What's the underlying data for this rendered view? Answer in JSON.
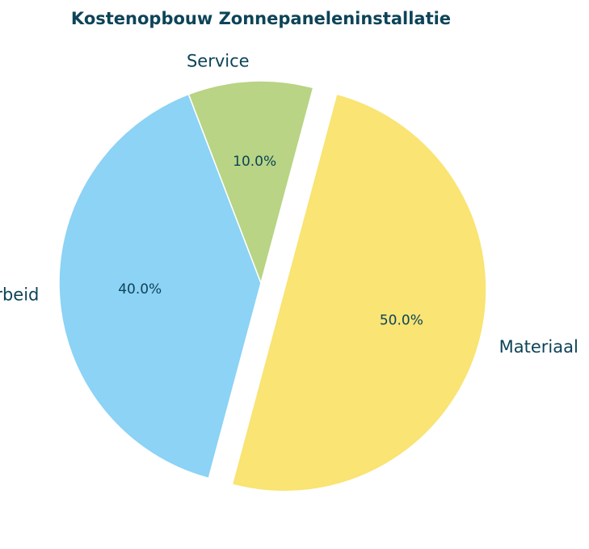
{
  "chart_data": {
    "type": "pie",
    "title": "Kostenopbouw Zonnepaneleninstallatie",
    "slices": [
      {
        "label": "Materiaal",
        "value": 50.0,
        "pct_label": "50.0%",
        "color": "#F9E474",
        "exploded": true
      },
      {
        "label": "Arbeid",
        "value": 40.0,
        "pct_label": "40.0%",
        "color": "#8CD3F5",
        "exploded": false
      },
      {
        "label": "Service",
        "value": 10.0,
        "pct_label": "10.0%",
        "color": "#B8D484",
        "exploded": false
      }
    ],
    "start_angle_deg": 75,
    "direction": "clockwise",
    "text_color": "#0D4458",
    "edge_color": "#ffffff"
  }
}
